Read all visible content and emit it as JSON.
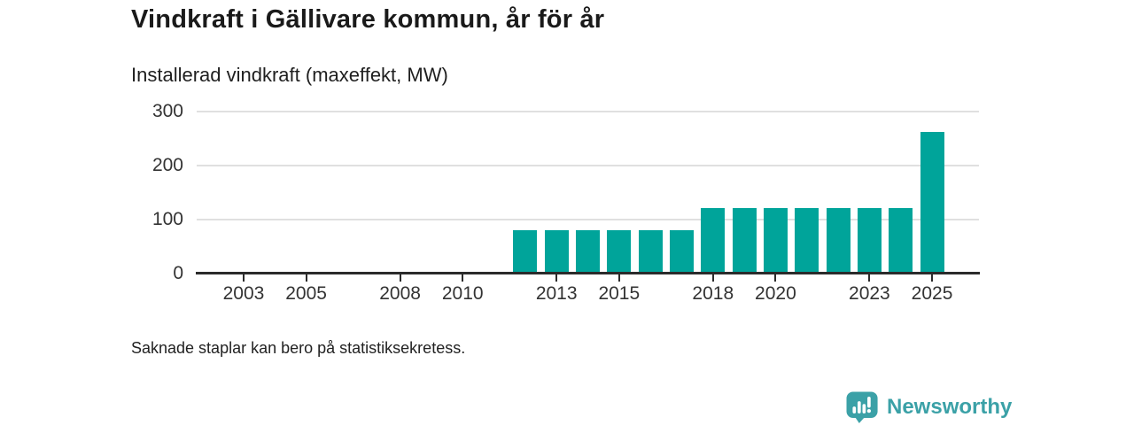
{
  "header": {
    "title": "Vindkraft i Gällivare kommun, år för år",
    "subtitle": "Installerad vindkraft (maxeffekt, MW)"
  },
  "footnote": "Saknade staplar kan bero på statistiksekretess.",
  "brand": {
    "name": "Newsworthy",
    "icon": "bar-chart-speech-bubble-icon",
    "color": "#3ba1a7"
  },
  "colors": {
    "bar": "#00a49a",
    "axis_line": "#2b2b2b",
    "grid_line": "#e0e0e0",
    "label_text": "#333333",
    "title_text": "#1a1a1a"
  },
  "chart_data": {
    "type": "bar",
    "title": "Vindkraft i Gällivare kommun, år för år",
    "ylabel": "Installerad vindkraft (maxeffekt, MW)",
    "categories": [
      2002,
      2003,
      2004,
      2005,
      2006,
      2007,
      2008,
      2009,
      2010,
      2011,
      2012,
      2013,
      2014,
      2015,
      2016,
      2017,
      2018,
      2019,
      2020,
      2021,
      2022,
      2023,
      2024,
      2025
    ],
    "values": [
      null,
      null,
      null,
      null,
      null,
      null,
      null,
      null,
      null,
      null,
      80,
      80,
      80,
      80,
      80,
      80,
      122,
      122,
      122,
      122,
      122,
      122,
      122,
      262
    ],
    "x_ticks": [
      2003,
      2005,
      2008,
      2010,
      2013,
      2015,
      2018,
      2020,
      2023,
      2025
    ],
    "y_ticks": [
      0,
      100,
      200,
      300
    ],
    "ylim": [
      0,
      300
    ],
    "x_domain": [
      2001.5,
      2026.5
    ],
    "grid": true,
    "legend": "none"
  }
}
